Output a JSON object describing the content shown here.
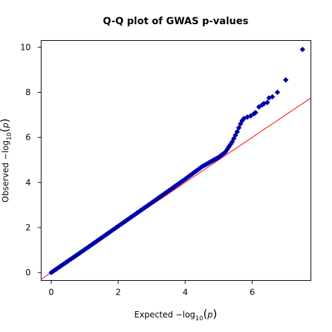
{
  "chart_data": {
    "type": "scatter",
    "title": "Q-Q plot of GWAS p-values",
    "xlabel": {
      "prefix": "Expected  −log",
      "subscript": "10",
      "paren_open": "(",
      "var": "p",
      "paren_close": ")"
    },
    "ylabel": {
      "prefix": "Observed  −log",
      "subscript": "10",
      "paren_open": "(",
      "var": "p",
      "paren_close": ")"
    },
    "xlim": [
      -0.3,
      7.75
    ],
    "ylim": [
      -0.35,
      10.3
    ],
    "xticks": [
      0,
      2,
      4,
      6
    ],
    "yticks": [
      0,
      2,
      4,
      6,
      8,
      10
    ],
    "xtick_labels": [
      "0",
      "2",
      "4",
      "6"
    ],
    "ytick_labels": [
      "0",
      "2",
      "4",
      "6",
      "8",
      "10"
    ],
    "grid": false,
    "point_color": "#00008b",
    "point_edge_color": "#0000cd",
    "reference_line": {
      "intercept": 0,
      "slope": 1,
      "color": "#ff0000"
    },
    "series": [
      {
        "trend": {
          "x": [
            0,
            1,
            2,
            3,
            4,
            4.5,
            5.0,
            5.2,
            5.4,
            5.55,
            5.65,
            5.72,
            5.76
          ],
          "y": [
            0,
            1.02,
            2.06,
            3.1,
            4.15,
            4.7,
            5.12,
            5.35,
            5.8,
            6.25,
            6.6,
            6.8,
            6.85
          ]
        },
        "top_points": {
          "x": [
            5.85,
            5.95,
            6.05,
            6.1,
            6.2,
            6.3,
            6.35,
            6.45,
            6.5,
            6.6,
            6.75,
            7.0,
            7.5
          ],
          "y": [
            6.9,
            6.95,
            7.05,
            7.1,
            7.35,
            7.45,
            7.5,
            7.55,
            7.75,
            7.8,
            8.0,
            8.55,
            9.9
          ]
        }
      }
    ]
  }
}
